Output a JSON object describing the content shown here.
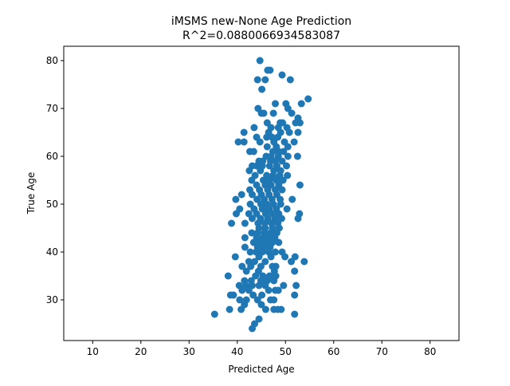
{
  "chart_data": {
    "type": "scatter",
    "title": "iMSMS new-None Age Prediction",
    "subtitle": "R^2=0.0880066934583087",
    "xlabel": "Predicted Age",
    "ylabel": "True Age",
    "xlim": [
      4,
      86
    ],
    "ylim": [
      21.5,
      83
    ],
    "x_ticks": [
      10,
      20,
      30,
      40,
      50,
      60,
      70,
      80
    ],
    "y_ticks": [
      30,
      40,
      50,
      60,
      70,
      80
    ],
    "grid": false,
    "marker_color": "#1f77b4",
    "points": [
      [
        44.7,
        80
      ],
      [
        46.3,
        78
      ],
      [
        46.8,
        78
      ],
      [
        44.2,
        76
      ],
      [
        45.8,
        76
      ],
      [
        49.3,
        77
      ],
      [
        51.0,
        76
      ],
      [
        45.1,
        74
      ],
      [
        54.7,
        72
      ],
      [
        53.3,
        71
      ],
      [
        47.9,
        71
      ],
      [
        50.1,
        71
      ],
      [
        44.3,
        70
      ],
      [
        50.5,
        70
      ],
      [
        45.0,
        69
      ],
      [
        45.5,
        69
      ],
      [
        47.5,
        69
      ],
      [
        51.3,
        69
      ],
      [
        52.6,
        68
      ],
      [
        48.9,
        67
      ],
      [
        49.4,
        67
      ],
      [
        52.1,
        67
      ],
      [
        53.0,
        67
      ],
      [
        46.2,
        67
      ],
      [
        43.5,
        66
      ],
      [
        47.0,
        66
      ],
      [
        48.5,
        66
      ],
      [
        50.3,
        66
      ],
      [
        41.4,
        65
      ],
      [
        46.5,
        65
      ],
      [
        49.0,
        65
      ],
      [
        52.6,
        65
      ],
      [
        50.8,
        65
      ],
      [
        44.0,
        64
      ],
      [
        46.1,
        64
      ],
      [
        47.2,
        64
      ],
      [
        48.4,
        64
      ],
      [
        40.2,
        63
      ],
      [
        41.4,
        63
      ],
      [
        44.7,
        63
      ],
      [
        47.6,
        63
      ],
      [
        49.8,
        63
      ],
      [
        51.8,
        63
      ],
      [
        46.2,
        62
      ],
      [
        48.1,
        62
      ],
      [
        50.5,
        62
      ],
      [
        42.6,
        61
      ],
      [
        43.4,
        61
      ],
      [
        47.4,
        61
      ],
      [
        48.6,
        61
      ],
      [
        49.6,
        61
      ],
      [
        46.0,
        60
      ],
      [
        47.0,
        60
      ],
      [
        48.5,
        60
      ],
      [
        50.5,
        60
      ],
      [
        52.5,
        60
      ],
      [
        44.5,
        59
      ],
      [
        45.3,
        59
      ],
      [
        46.9,
        59
      ],
      [
        47.9,
        59
      ],
      [
        49.3,
        59
      ],
      [
        43.1,
        58
      ],
      [
        44.0,
        58
      ],
      [
        45.2,
        58
      ],
      [
        46.7,
        58
      ],
      [
        48.2,
        58
      ],
      [
        50.2,
        58
      ],
      [
        42.5,
        57
      ],
      [
        44.8,
        57
      ],
      [
        47.6,
        57
      ],
      [
        49.0,
        57
      ],
      [
        43.7,
        56
      ],
      [
        46.1,
        56
      ],
      [
        47.4,
        56
      ],
      [
        48.8,
        56
      ],
      [
        50.4,
        56
      ],
      [
        43.0,
        55
      ],
      [
        45.4,
        55
      ],
      [
        46.7,
        55
      ],
      [
        48.1,
        55
      ],
      [
        49.5,
        55
      ],
      [
        44.0,
        54
      ],
      [
        45.8,
        54
      ],
      [
        47.0,
        54
      ],
      [
        48.6,
        54
      ],
      [
        53.0,
        54
      ],
      [
        42.6,
        53
      ],
      [
        44.6,
        53
      ],
      [
        46.3,
        53
      ],
      [
        47.9,
        53
      ],
      [
        49.3,
        53
      ],
      [
        40.9,
        52
      ],
      [
        43.1,
        52
      ],
      [
        45.0,
        52
      ],
      [
        46.6,
        52
      ],
      [
        48.2,
        52
      ],
      [
        51.4,
        51
      ],
      [
        39.7,
        51
      ],
      [
        44.1,
        51
      ],
      [
        45.6,
        51
      ],
      [
        47.2,
        51
      ],
      [
        48.9,
        51
      ],
      [
        42.7,
        50
      ],
      [
        44.9,
        50
      ],
      [
        46.1,
        50
      ],
      [
        47.5,
        50
      ],
      [
        49.0,
        50
      ],
      [
        40.5,
        49
      ],
      [
        43.5,
        49
      ],
      [
        45.2,
        49
      ],
      [
        46.6,
        49
      ],
      [
        48.1,
        49
      ],
      [
        50.3,
        49
      ],
      [
        39.8,
        48
      ],
      [
        42.4,
        48
      ],
      [
        44.0,
        48
      ],
      [
        45.9,
        48
      ],
      [
        47.3,
        48
      ],
      [
        48.6,
        48
      ],
      [
        52.9,
        48
      ],
      [
        43.1,
        47
      ],
      [
        44.8,
        47
      ],
      [
        46.3,
        47
      ],
      [
        47.8,
        47
      ],
      [
        49.2,
        47
      ],
      [
        52.6,
        47
      ],
      [
        38.8,
        46
      ],
      [
        41.6,
        46
      ],
      [
        44.3,
        46
      ],
      [
        45.7,
        46
      ],
      [
        47.1,
        46
      ],
      [
        48.4,
        46
      ],
      [
        44.5,
        45
      ],
      [
        45.8,
        45
      ],
      [
        47.3,
        45
      ],
      [
        48.7,
        45
      ],
      [
        43.0,
        44
      ],
      [
        44.2,
        44
      ],
      [
        45.6,
        44
      ],
      [
        46.9,
        44
      ],
      [
        48.2,
        44
      ],
      [
        41.6,
        43
      ],
      [
        44.0,
        43
      ],
      [
        45.3,
        43
      ],
      [
        46.6,
        43
      ],
      [
        47.8,
        43
      ],
      [
        43.4,
        42
      ],
      [
        44.7,
        42
      ],
      [
        46.0,
        42
      ],
      [
        47.3,
        42
      ],
      [
        48.6,
        42
      ],
      [
        41.6,
        41
      ],
      [
        44.2,
        41
      ],
      [
        45.5,
        41
      ],
      [
        46.8,
        41
      ],
      [
        42.7,
        40
      ],
      [
        43.9,
        40
      ],
      [
        45.2,
        40
      ],
      [
        46.5,
        40
      ],
      [
        47.9,
        40
      ],
      [
        49.3,
        40
      ],
      [
        39.6,
        39
      ],
      [
        44.5,
        39
      ],
      [
        47.0,
        39
      ],
      [
        49.9,
        39
      ],
      [
        52.0,
        39
      ],
      [
        42.4,
        38
      ],
      [
        43.6,
        38
      ],
      [
        45.8,
        38
      ],
      [
        51.2,
        38
      ],
      [
        53.9,
        38
      ],
      [
        41.0,
        37
      ],
      [
        42.8,
        37
      ],
      [
        44.9,
        37
      ],
      [
        47.3,
        37
      ],
      [
        48.0,
        37
      ],
      [
        41.9,
        36
      ],
      [
        44.4,
        36
      ],
      [
        47.7,
        36
      ],
      [
        51.9,
        36
      ],
      [
        38.1,
        35
      ],
      [
        43.8,
        35
      ],
      [
        45.3,
        35
      ],
      [
        46.7,
        35
      ],
      [
        48.0,
        35
      ],
      [
        41.5,
        34
      ],
      [
        42.9,
        34
      ],
      [
        44.9,
        34
      ],
      [
        46.2,
        34
      ],
      [
        47.6,
        34
      ],
      [
        40.4,
        33
      ],
      [
        41.8,
        33
      ],
      [
        43.1,
        33
      ],
      [
        44.5,
        33
      ],
      [
        45.8,
        33
      ],
      [
        49.6,
        33
      ],
      [
        52.2,
        33
      ],
      [
        41.0,
        32
      ],
      [
        42.4,
        32
      ],
      [
        46.5,
        32
      ],
      [
        47.9,
        32
      ],
      [
        48.5,
        32
      ],
      [
        38.6,
        31
      ],
      [
        39.2,
        31
      ],
      [
        43.3,
        31
      ],
      [
        45.1,
        31
      ],
      [
        51.9,
        31
      ],
      [
        40.5,
        30
      ],
      [
        41.9,
        30
      ],
      [
        44.2,
        30
      ],
      [
        46.9,
        30
      ],
      [
        47.6,
        30
      ],
      [
        41.5,
        29
      ],
      [
        45.0,
        29
      ],
      [
        38.4,
        28
      ],
      [
        40.8,
        28
      ],
      [
        45.9,
        28
      ],
      [
        47.6,
        28
      ],
      [
        48.4,
        28
      ],
      [
        49.1,
        28
      ],
      [
        35.3,
        27
      ],
      [
        51.9,
        27
      ],
      [
        44.5,
        26
      ],
      [
        43.6,
        25
      ],
      [
        43.1,
        24
      ]
    ]
  }
}
